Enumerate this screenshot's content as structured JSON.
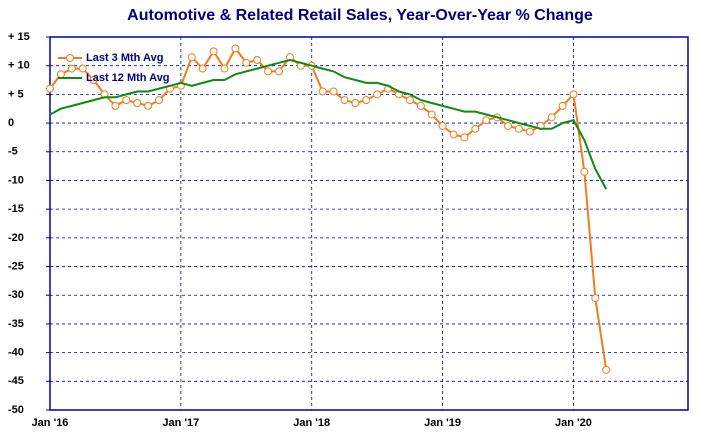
{
  "chart_data": {
    "type": "line",
    "title": "Automotive & Related Retail Sales, Year-Over-Year % Change",
    "categories": [
      "Jan '16",
      null,
      null,
      null,
      null,
      null,
      null,
      null,
      null,
      null,
      null,
      null,
      "Jan '17",
      null,
      null,
      null,
      null,
      null,
      null,
      null,
      null,
      null,
      null,
      null,
      "Jan '18",
      null,
      null,
      null,
      null,
      null,
      null,
      null,
      null,
      null,
      null,
      null,
      "Jan '19",
      null,
      null,
      null,
      null,
      null,
      null,
      null,
      null,
      null,
      null,
      null,
      "Jan '20",
      null,
      null,
      null,
      null,
      null,
      null,
      null,
      null,
      null,
      null
    ],
    "series": [
      {
        "name": "Last 3 Mth Avg",
        "color": "#f07d1e",
        "marker": "circle",
        "values": [
          6,
          8.5,
          9.5,
          9.5,
          7.5,
          5,
          3,
          4,
          3.5,
          3,
          4,
          6,
          6.5,
          11.5,
          9.5,
          12.5,
          9.5,
          13,
          10.5,
          11,
          9,
          9,
          11.5,
          10,
          10,
          5.5,
          5.5,
          4,
          3.5,
          4,
          5,
          6,
          5,
          4,
          3,
          1.5,
          -0.5,
          -2,
          -2.5,
          -1,
          0.5,
          1,
          -0.5,
          -1,
          -1.5,
          -0.5,
          1,
          3,
          5,
          -8.5,
          -30.5,
          -43,
          null,
          null,
          null,
          null,
          null,
          null,
          null
        ]
      },
      {
        "name": "Last 12 Mth Avg",
        "color": "#108a10",
        "values": [
          1.5,
          2.5,
          3,
          3.5,
          4,
          4.5,
          4.5,
          5,
          5.5,
          5.5,
          6,
          6.5,
          7,
          6.5,
          7,
          7.5,
          7.5,
          8.5,
          9,
          9.5,
          10,
          10.5,
          11,
          10.5,
          10,
          9.5,
          9,
          8,
          7.5,
          7,
          7,
          6.5,
          5.5,
          5,
          4,
          3.5,
          3,
          2.5,
          2,
          2,
          1.5,
          1,
          0.5,
          0,
          -0.5,
          -1,
          -1,
          0,
          0.5,
          -3,
          -8,
          -11.5,
          null,
          null,
          null,
          null,
          null,
          null,
          null
        ]
      }
    ],
    "ylim": [
      -50,
      15
    ],
    "yticks": [
      {
        "value": 15,
        "label": "+ 15"
      },
      {
        "value": 10,
        "label": "+ 10"
      },
      {
        "value": 5,
        "label": "+ 5"
      },
      0,
      -5,
      -10,
      -15,
      -20,
      -25,
      -30,
      -35,
      -40,
      -45,
      -50
    ],
    "grid": true,
    "legend": "upper left"
  }
}
